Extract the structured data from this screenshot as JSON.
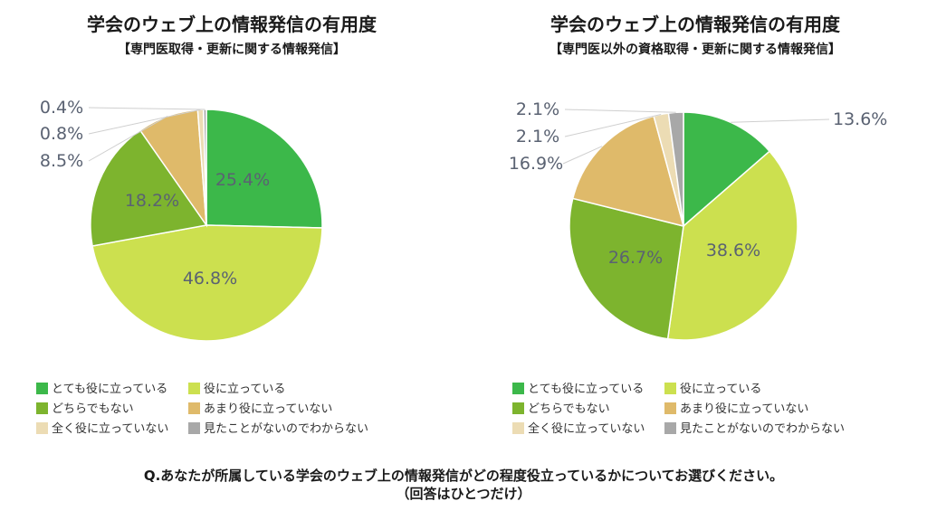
{
  "chart_data": [
    {
      "type": "pie",
      "title": "学会のウェブ上の情報発信の有用度",
      "subtitle": "【専門医取得・更新に関する情報発信】",
      "categories": [
        "とても役に立っている",
        "役に立っている",
        "どちらでもない",
        "あまり役に立っていない",
        "全く役に立っていない",
        "見たことがないのでわからない"
      ],
      "values": [
        25.4,
        46.8,
        18.2,
        8.5,
        0.8,
        0.4
      ],
      "value_labels": [
        "25.4%",
        "46.8%",
        "18.2%",
        "8.5%",
        "0.8%",
        "0.4%"
      ],
      "legend": "bottom"
    },
    {
      "type": "pie",
      "title": "学会のウェブ上の情報発信の有用度",
      "subtitle": "【専門医以外の資格取得・更新に関する情報発信】",
      "categories": [
        "とても役に立っている",
        "役に立っている",
        "どちらでもない",
        "あまり役に立っていない",
        "全く役に立っていない",
        "見たことがないのでわからない"
      ],
      "values": [
        13.6,
        38.6,
        26.7,
        16.9,
        2.1,
        2.1
      ],
      "value_labels": [
        "13.6%",
        "38.6%",
        "26.7%",
        "16.9%",
        "2.1%",
        "2.1%"
      ],
      "legend": "bottom"
    }
  ],
  "colors": [
    "#3cb84a",
    "#cce04f",
    "#7db42e",
    "#dfba6a",
    "#ecdcb4",
    "#a8a8a8"
  ],
  "question": {
    "line1": "Q.あなたが所属している学会のウェブ上の情報発信がどの程度役立っているかについてお選びください。",
    "line2": "（回答はひとつだけ）"
  }
}
